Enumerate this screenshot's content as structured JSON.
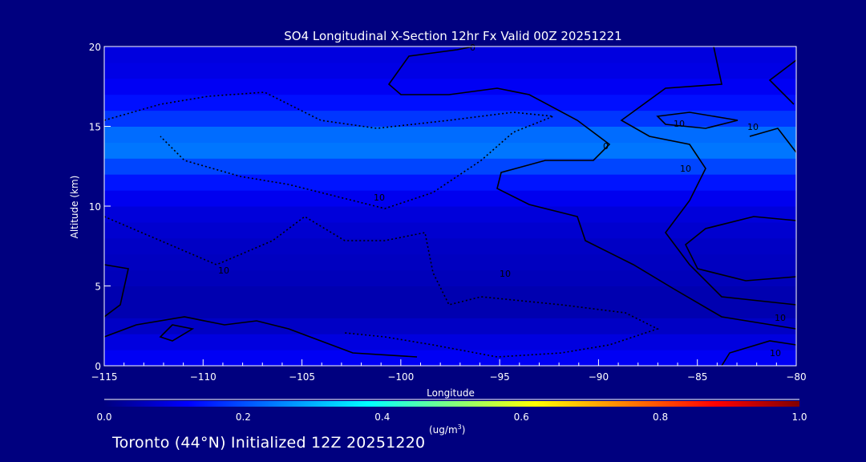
{
  "chart_data": {
    "type": "heatmap",
    "title": "SO4 Longitudinal X-Section 12hr  Fx Valid 00Z 20251221",
    "xlabel": "Longitude",
    "ylabel": "Altitude (km)",
    "xlim": [
      -115,
      -80
    ],
    "ylim": [
      0,
      20
    ],
    "xticks": [
      "-115",
      "-110",
      "-105",
      "-100",
      "-95",
      "-90",
      "-85",
      "-80"
    ],
    "xtick_values": [
      -115,
      -110,
      -105,
      -100,
      -95,
      -90,
      -85,
      -80
    ],
    "yticks": [
      "0",
      "5",
      "10",
      "15",
      "20"
    ],
    "ytick_values": [
      0,
      5,
      10,
      15,
      20
    ],
    "altitude_profile_km": [
      0,
      1,
      2,
      3,
      4,
      5,
      6,
      7,
      8,
      9,
      10,
      11,
      12,
      13,
      14,
      15,
      16,
      17,
      18,
      19,
      20
    ],
    "concentration_profile": [
      0.12,
      0.1,
      0.08,
      0.05,
      0.04,
      0.05,
      0.06,
      0.06,
      0.07,
      0.08,
      0.09,
      0.12,
      0.16,
      0.22,
      0.26,
      0.2,
      0.15,
      0.12,
      0.1,
      0.09,
      0.09
    ],
    "contour_labels": [
      "0",
      "10",
      "10",
      "10",
      "10",
      "10",
      "10",
      "10",
      "0",
      "10"
    ],
    "colorbar": {
      "range": [
        0.0,
        1.0
      ],
      "tick_labels": [
        "0.0",
        "0.2",
        "0.4",
        "0.6",
        "0.8",
        "1.0"
      ],
      "unit_label": "(ug/m",
      "unit_exp": "3",
      "unit_close": ")"
    }
  },
  "footer": "Toronto (44°N) Initialized 12Z 20251220"
}
